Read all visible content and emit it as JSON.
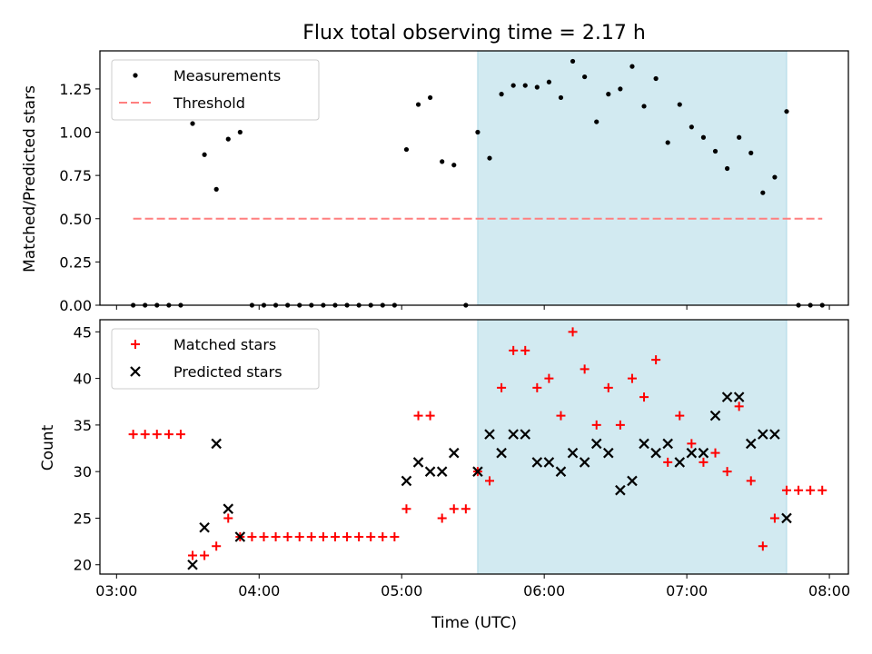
{
  "figure": {
    "title": "Flux total observing time = 2.17 h",
    "xlabel": "Time (UTC)",
    "highlight_span": {
      "start": "05:32",
      "end": "07:42",
      "color": "#add8e6"
    }
  },
  "chart_data": [
    {
      "type": "scatter",
      "panel": "top",
      "ylabel": "Matched/Predicted stars",
      "ylim": [
        0,
        1.47
      ],
      "yticks": [
        "0.00",
        "0.25",
        "0.50",
        "0.75",
        "1.00",
        "1.25"
      ],
      "xlim": [
        "02:53",
        "08:08"
      ],
      "xticks": [
        "03:00",
        "04:00",
        "05:00",
        "06:00",
        "07:00",
        "08:00"
      ],
      "legend": "top-left",
      "series": [
        {
          "name": "Measurements",
          "kind": "points",
          "color": "#000000",
          "x": [
            "03:07",
            "03:12",
            "03:17",
            "03:22",
            "03:27",
            "03:32",
            "03:37",
            "03:42",
            "03:47",
            "03:52",
            "03:57",
            "04:02",
            "04:07",
            "04:12",
            "04:17",
            "04:22",
            "04:27",
            "04:32",
            "04:37",
            "04:42",
            "04:47",
            "04:52",
            "04:57",
            "05:02",
            "05:07",
            "05:12",
            "05:17",
            "05:22",
            "05:27",
            "05:32",
            "05:37",
            "05:42",
            "05:47",
            "05:52",
            "05:57",
            "06:02",
            "06:07",
            "06:12",
            "06:17",
            "06:22",
            "06:27",
            "06:32",
            "06:37",
            "06:42",
            "06:47",
            "06:52",
            "06:57",
            "07:02",
            "07:07",
            "07:12",
            "07:17",
            "07:22",
            "07:27",
            "07:32",
            "07:37",
            "07:42",
            "07:47",
            "07:52",
            "07:57"
          ],
          "y": [
            0,
            0,
            0,
            0,
            0,
            1.05,
            0.87,
            0.67,
            0.96,
            1.0,
            0,
            0,
            0,
            0,
            0,
            0,
            0,
            0,
            0,
            0,
            0,
            0,
            0,
            0.9,
            1.16,
            1.2,
            0.83,
            0.81,
            0,
            1.0,
            0.85,
            1.22,
            1.27,
            1.27,
            1.26,
            1.29,
            1.2,
            1.41,
            1.32,
            1.06,
            1.22,
            1.25,
            1.38,
            1.15,
            1.31,
            0.94,
            1.16,
            1.03,
            0.97,
            0.89,
            0.79,
            0.97,
            0.88,
            0.65,
            0.74,
            1.12,
            0,
            0,
            0
          ]
        },
        {
          "name": "Threshold",
          "kind": "dashed-line",
          "color": "#ff7f7f",
          "x": [
            "03:07",
            "07:57"
          ],
          "y": [
            0.5,
            0.5
          ]
        }
      ]
    },
    {
      "type": "scatter",
      "panel": "bottom",
      "ylabel": "Count",
      "ylim": [
        19,
        46.3
      ],
      "yticks": [
        "20",
        "25",
        "30",
        "35",
        "40",
        "45"
      ],
      "xlim": [
        "02:53",
        "08:08"
      ],
      "xticks": [
        "03:00",
        "04:00",
        "05:00",
        "06:00",
        "07:00",
        "08:00"
      ],
      "legend": "top-left",
      "series": [
        {
          "name": "Matched stars",
          "marker": "plus",
          "color": "#ff0000",
          "x": [
            "03:07",
            "03:12",
            "03:17",
            "03:22",
            "03:27",
            "03:32",
            "03:37",
            "03:42",
            "03:47",
            "03:52",
            "03:57",
            "04:02",
            "04:07",
            "04:12",
            "04:17",
            "04:22",
            "04:27",
            "04:32",
            "04:37",
            "04:42",
            "04:47",
            "04:52",
            "04:57",
            "05:02",
            "05:07",
            "05:12",
            "05:17",
            "05:22",
            "05:27",
            "05:32",
            "05:37",
            "05:42",
            "05:47",
            "05:52",
            "05:57",
            "06:02",
            "06:07",
            "06:12",
            "06:17",
            "06:22",
            "06:27",
            "06:32",
            "06:37",
            "06:42",
            "06:47",
            "06:52",
            "06:57",
            "07:02",
            "07:07",
            "07:12",
            "07:17",
            "07:22",
            "07:27",
            "07:32",
            "07:37",
            "07:42",
            "07:47",
            "07:52",
            "07:57"
          ],
          "y": [
            34,
            34,
            34,
            34,
            34,
            21,
            21,
            22,
            25,
            23,
            23,
            23,
            23,
            23,
            23,
            23,
            23,
            23,
            23,
            23,
            23,
            23,
            23,
            26,
            36,
            36,
            25,
            26,
            26,
            30,
            29,
            39,
            43,
            43,
            39,
            40,
            36,
            45,
            41,
            35,
            39,
            35,
            40,
            38,
            42,
            31,
            36,
            33,
            31,
            32,
            30,
            37,
            29,
            22,
            25,
            28,
            28,
            28,
            28
          ]
        },
        {
          "name": "Predicted stars",
          "marker": "x",
          "color": "#000000",
          "x": [
            "03:32",
            "03:37",
            "03:42",
            "03:47",
            "03:52",
            "05:02",
            "05:07",
            "05:12",
            "05:17",
            "05:22",
            "05:32",
            "05:37",
            "05:42",
            "05:47",
            "05:52",
            "05:57",
            "06:02",
            "06:07",
            "06:12",
            "06:17",
            "06:22",
            "06:27",
            "06:32",
            "06:37",
            "06:42",
            "06:47",
            "06:52",
            "06:57",
            "07:02",
            "07:07",
            "07:12",
            "07:17",
            "07:22",
            "07:27",
            "07:32",
            "07:37",
            "07:42"
          ],
          "y": [
            20,
            24,
            33,
            26,
            23,
            29,
            31,
            30,
            30,
            32,
            30,
            34,
            32,
            34,
            34,
            31,
            31,
            30,
            32,
            31,
            33,
            32,
            28,
            29,
            33,
            32,
            33,
            31,
            32,
            32,
            36,
            38,
            38,
            33,
            34,
            34,
            25
          ]
        }
      ]
    }
  ]
}
